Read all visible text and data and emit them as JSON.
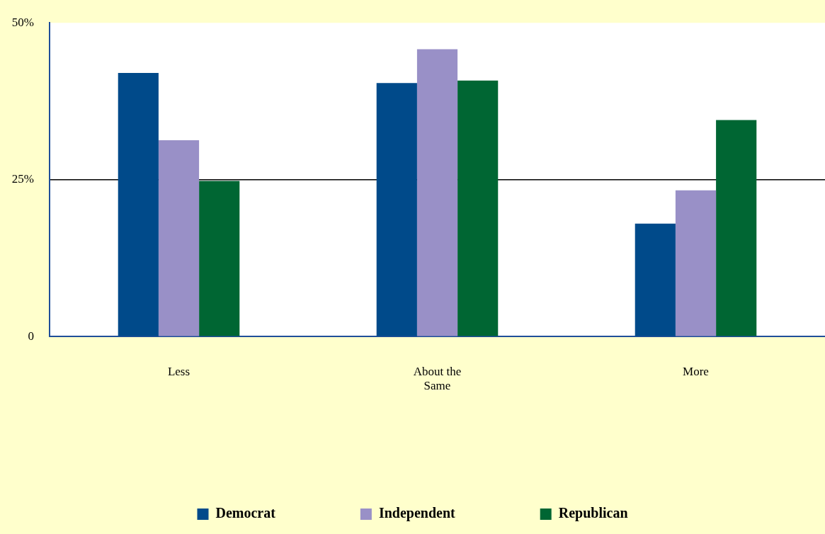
{
  "chart_data": {
    "type": "bar",
    "categories": [
      "Less",
      "About the Same",
      "More"
    ],
    "series": [
      {
        "name": "Democrat",
        "color": "#004a8a",
        "values": [
          42,
          40.4,
          18
        ]
      },
      {
        "name": "Independent",
        "color": "#9990c7",
        "values": [
          31.3,
          45.8,
          23.3
        ]
      },
      {
        "name": "Republican",
        "color": "#006633",
        "values": [
          24.8,
          40.8,
          34.5
        ]
      }
    ],
    "ylim": [
      0,
      50
    ],
    "yticks": [
      {
        "value": 0,
        "label": "0"
      },
      {
        "value": 25,
        "label": "25%"
      },
      {
        "value": 50,
        "label": "50%"
      }
    ],
    "grid": "y",
    "legend": "bottom"
  }
}
